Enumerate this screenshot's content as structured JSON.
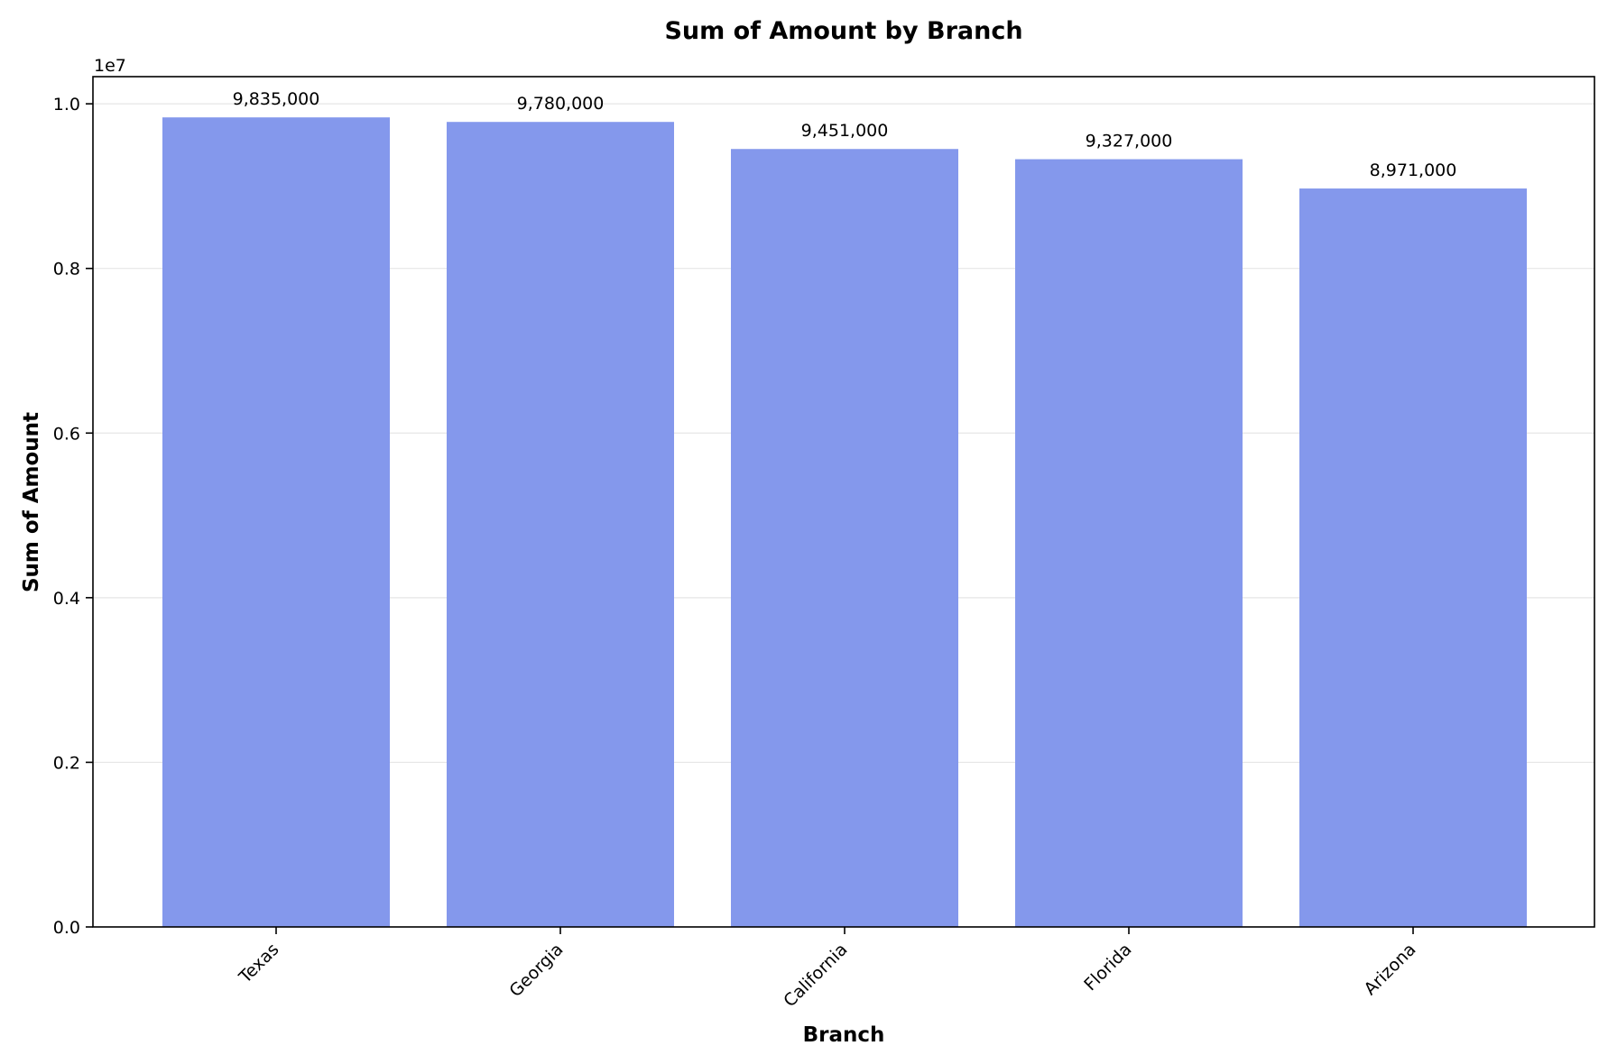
{
  "chart_data": {
    "type": "bar",
    "title": "Sum of Amount by Branch",
    "xlabel": "Branch",
    "ylabel": "Sum of Amount",
    "categories": [
      "Texas",
      "Georgia",
      "California",
      "Florida",
      "Arizona"
    ],
    "values": [
      9835000,
      9780000,
      9451000,
      9327000,
      8971000
    ],
    "value_labels": [
      "9,835,000",
      "9,780,000",
      "9,451,000",
      "9,327,000",
      "8,971,000"
    ],
    "ylim": [
      0,
      10330000
    ],
    "y_ticks": [
      0,
      2000000,
      4000000,
      6000000,
      8000000,
      10000000
    ],
    "y_tick_labels": [
      "0.0",
      "0.2",
      "0.4",
      "0.6",
      "0.8",
      "1.0"
    ],
    "y_offset_label": "1e7",
    "grid": "horizontal",
    "bar_color": "#8498ec",
    "x_tick_rotation": 45
  }
}
